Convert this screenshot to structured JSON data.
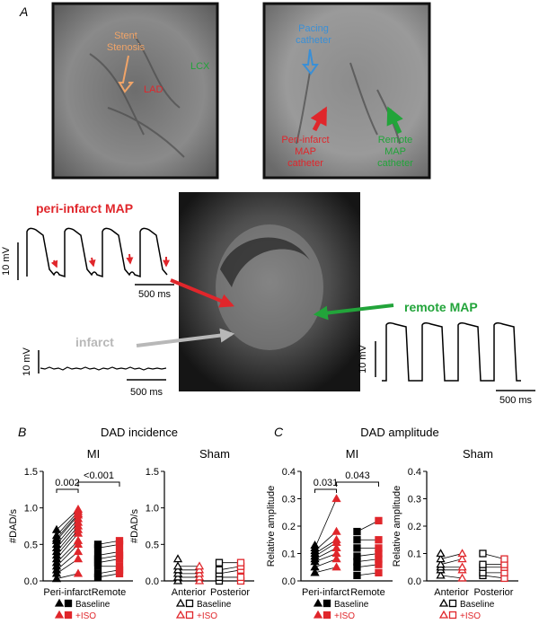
{
  "panel_labels": {
    "a": "A",
    "b": "B",
    "c": "C"
  },
  "angio_left": {
    "stent_label_1": "Stent",
    "stent_label_2": "Stenosis",
    "lcx": "LCX",
    "lad": "LAD"
  },
  "angio_right": {
    "pacing_1": "Pacing",
    "pacing_2": "catheter",
    "peri_1": "Peri-infarct",
    "peri_2": "MAP",
    "peri_3": "catheter",
    "remote_1": "Remote",
    "remote_2": "MAP",
    "remote_3": "catheter"
  },
  "traces": {
    "peri_infarct_title": "peri-infarct MAP",
    "remote_title": "remote MAP",
    "infarct_title": "infarct",
    "scale_mv": "10 mV",
    "scale_ms": "500 ms"
  },
  "colors": {
    "red": "#e0262b",
    "green": "#22a43a",
    "blue": "#3a8fd6",
    "orange": "#f0a468",
    "gray": "#b8b8b8"
  },
  "panel_b_title": "DAD incidence",
  "panel_c_title": "DAD amplitude",
  "legend": {
    "baseline": "Baseline",
    "iso": "+ISO"
  },
  "chart_data": [
    {
      "type": "scatter",
      "title": "MI",
      "ylabel": "#DAD/s",
      "ylim": [
        0,
        1.5
      ],
      "yticks": [
        "0.0",
        "0.5",
        "1.0",
        "1.5"
      ],
      "categories": [
        "Peri-infarct",
        "Remote"
      ],
      "series": [
        {
          "name": "Baseline",
          "group": "Peri-infarct",
          "values": [
            0.03,
            0.1,
            0.15,
            0.2,
            0.25,
            0.3,
            0.35,
            0.4,
            0.45,
            0.5,
            0.55,
            0.58,
            0.62,
            0.7
          ]
        },
        {
          "name": "+ISO",
          "group": "Peri-infarct",
          "values": [
            0.1,
            0.3,
            0.4,
            0.5,
            0.55,
            0.65,
            0.7,
            0.75,
            0.8,
            0.85,
            0.9,
            0.92,
            0.95,
            0.98
          ]
        },
        {
          "name": "Baseline",
          "group": "Remote",
          "values": [
            0.05,
            0.1,
            0.2,
            0.25,
            0.3,
            0.35,
            0.45,
            0.5
          ]
        },
        {
          "name": "+ISO",
          "group": "Remote",
          "values": [
            0.1,
            0.15,
            0.2,
            0.3,
            0.35,
            0.4,
            0.5,
            0.55
          ]
        }
      ],
      "annotations": [
        {
          "text": "0.002"
        },
        {
          "text": "<0.001"
        }
      ]
    },
    {
      "type": "scatter",
      "title": "Sham",
      "ylabel": "#DAD/s",
      "ylim": [
        0,
        1.5
      ],
      "yticks": [
        "0.0",
        "0.5",
        "1.0",
        "1.5"
      ],
      "categories": [
        "Anterior",
        "Posterior"
      ],
      "series": [
        {
          "name": "Baseline",
          "group": "Anterior",
          "values": [
            0.0,
            0.05,
            0.1,
            0.15,
            0.2,
            0.3
          ]
        },
        {
          "name": "+ISO",
          "group": "Anterior",
          "values": [
            0.0,
            0.05,
            0.1,
            0.15,
            0.2
          ]
        },
        {
          "name": "Baseline",
          "group": "Posterior",
          "values": [
            0.0,
            0.05,
            0.1,
            0.15,
            0.25
          ]
        },
        {
          "name": "+ISO",
          "group": "Posterior",
          "values": [
            0.0,
            0.05,
            0.15,
            0.2,
            0.25
          ]
        }
      ]
    },
    {
      "type": "scatter",
      "title": "MI",
      "ylabel": "Relative amplitude",
      "ylim": [
        0,
        0.4
      ],
      "yticks": [
        "0.0",
        "0.1",
        "0.2",
        "0.3",
        "0.4"
      ],
      "categories": [
        "Peri-infarct",
        "Remote"
      ],
      "series": [
        {
          "name": "Baseline",
          "group": "Peri-infarct",
          "values": [
            0.03,
            0.05,
            0.07,
            0.08,
            0.09,
            0.1,
            0.11,
            0.12,
            0.13
          ]
        },
        {
          "name": "+ISO",
          "group": "Peri-infarct",
          "values": [
            0.05,
            0.08,
            0.1,
            0.12,
            0.14,
            0.15,
            0.18,
            0.3
          ]
        },
        {
          "name": "Baseline",
          "group": "Remote",
          "values": [
            0.02,
            0.05,
            0.07,
            0.09,
            0.12,
            0.15,
            0.18
          ]
        },
        {
          "name": "+ISO",
          "group": "Remote",
          "values": [
            0.03,
            0.06,
            0.08,
            0.1,
            0.12,
            0.15,
            0.22
          ]
        }
      ],
      "annotations": [
        {
          "text": "0.031"
        },
        {
          "text": "0.043"
        }
      ]
    },
    {
      "type": "scatter",
      "title": "Sham",
      "ylabel": "Relative amplitude",
      "ylim": [
        0,
        0.4
      ],
      "yticks": [
        "0.0",
        "0.1",
        "0.2",
        "0.3",
        "0.4"
      ],
      "categories": [
        "Anterior",
        "Posterior"
      ],
      "series": [
        {
          "name": "Baseline",
          "group": "Anterior",
          "values": [
            0.02,
            0.04,
            0.05,
            0.06,
            0.08,
            0.1
          ]
        },
        {
          "name": "+ISO",
          "group": "Anterior",
          "values": [
            0.01,
            0.04,
            0.05,
            0.08,
            0.1
          ]
        },
        {
          "name": "Baseline",
          "group": "Posterior",
          "values": [
            0.02,
            0.03,
            0.05,
            0.06,
            0.1
          ]
        },
        {
          "name": "+ISO",
          "group": "Posterior",
          "values": [
            0.01,
            0.03,
            0.05,
            0.06,
            0.08
          ]
        }
      ]
    }
  ]
}
